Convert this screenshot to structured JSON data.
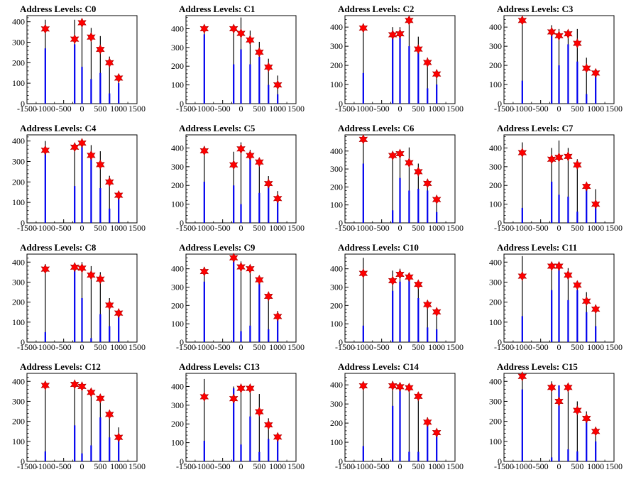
{
  "chart_data": [
    {
      "type": "bar",
      "title": "Address Levels: C0",
      "xlim": [
        -1500,
        1500
      ],
      "ylim": [
        0,
        430
      ],
      "yticks": [
        0,
        100,
        200,
        300,
        400
      ],
      "xticks": [
        -1500,
        -1000,
        -500,
        0,
        500,
        1000,
        1500
      ],
      "levels": [
        {
          "x": -1000,
          "black": 410,
          "blue": 270,
          "star": 365
        },
        {
          "x": -200,
          "black": 410,
          "blue": 290,
          "star": 315
        },
        {
          "x": 0,
          "black": 400,
          "blue": 180,
          "star": 395
        },
        {
          "x": 250,
          "black": 370,
          "blue": 120,
          "star": 325
        },
        {
          "x": 500,
          "black": 330,
          "blue": 150,
          "star": 265
        },
        {
          "x": 750,
          "black": 230,
          "blue": 50,
          "star": 200
        },
        {
          "x": 1000,
          "black": 140,
          "blue": 100,
          "star": 125
        }
      ]
    },
    {
      "type": "bar",
      "title": "Address Levels: C1",
      "xlim": [
        -1500,
        1500
      ],
      "ylim": [
        0,
        470
      ],
      "yticks": [
        0,
        100,
        200,
        300,
        400
      ],
      "xticks": [
        -1500,
        -1000,
        -500,
        0,
        500,
        1000,
        1500
      ],
      "levels": [
        {
          "x": -1000,
          "black": 420,
          "blue": 370,
          "star": 400
        },
        {
          "x": -200,
          "black": 420,
          "blue": 210,
          "star": 400
        },
        {
          "x": 0,
          "black": 460,
          "blue": 290,
          "star": 375
        },
        {
          "x": 250,
          "black": 390,
          "blue": 210,
          "star": 340
        },
        {
          "x": 500,
          "black": 330,
          "blue": 250,
          "star": 275
        },
        {
          "x": 750,
          "black": 240,
          "blue": 100,
          "star": 195
        },
        {
          "x": 1000,
          "black": 150,
          "blue": 50,
          "star": 100
        }
      ]
    },
    {
      "type": "bar",
      "title": "Address Levels: C2",
      "xlim": [
        -1500,
        1500
      ],
      "ylim": [
        0,
        460
      ],
      "yticks": [
        0,
        100,
        200,
        300,
        400
      ],
      "xticks": [
        -1500,
        -1000,
        -500,
        0,
        500,
        1000,
        1500
      ],
      "levels": [
        {
          "x": -1000,
          "black": 410,
          "blue": 160,
          "star": 395
        },
        {
          "x": -200,
          "black": 400,
          "blue": 380,
          "star": 360
        },
        {
          "x": 0,
          "black": 400,
          "blue": 370,
          "star": 365
        },
        {
          "x": 250,
          "black": 450,
          "blue": 300,
          "star": 435
        },
        {
          "x": 500,
          "black": 350,
          "blue": 290,
          "star": 285
        },
        {
          "x": 750,
          "black": 240,
          "blue": 80,
          "star": 215
        },
        {
          "x": 1000,
          "black": 170,
          "blue": 100,
          "star": 155
        }
      ]
    },
    {
      "type": "bar",
      "title": "Address Levels: C3",
      "xlim": [
        -1500,
        1500
      ],
      "ylim": [
        0,
        460
      ],
      "yticks": [
        0,
        100,
        200,
        300,
        400
      ],
      "xticks": [
        -1500,
        -1000,
        -500,
        0,
        500,
        1000,
        1500
      ],
      "levels": [
        {
          "x": -1000,
          "black": 440,
          "blue": 120,
          "star": 435
        },
        {
          "x": -200,
          "black": 410,
          "blue": 370,
          "star": 375
        },
        {
          "x": 0,
          "black": 390,
          "blue": 200,
          "star": 355
        },
        {
          "x": 250,
          "black": 380,
          "blue": 310,
          "star": 365
        },
        {
          "x": 500,
          "black": 390,
          "blue": 220,
          "star": 315
        },
        {
          "x": 750,
          "black": 240,
          "blue": 50,
          "star": 185
        },
        {
          "x": 1000,
          "black": 170,
          "blue": 150,
          "star": 160
        }
      ]
    },
    {
      "type": "bar",
      "title": "Address Levels: C4",
      "xlim": [
        -1500,
        1500
      ],
      "ylim": [
        0,
        430
      ],
      "yticks": [
        0,
        100,
        200,
        300,
        400
      ],
      "xticks": [
        -1500,
        -1000,
        -500,
        0,
        500,
        1000,
        1500
      ],
      "levels": [
        {
          "x": -1000,
          "black": 400,
          "blue": 360,
          "star": 355
        },
        {
          "x": -200,
          "black": 380,
          "blue": 180,
          "star": 370
        },
        {
          "x": 0,
          "black": 400,
          "blue": 380,
          "star": 390
        },
        {
          "x": 250,
          "black": 380,
          "blue": 320,
          "star": 330
        },
        {
          "x": 500,
          "black": 350,
          "blue": 170,
          "star": 285
        },
        {
          "x": 750,
          "black": 230,
          "blue": 70,
          "star": 200
        },
        {
          "x": 1000,
          "black": 150,
          "blue": 140,
          "star": 135
        }
      ]
    },
    {
      "type": "bar",
      "title": "Address Levels: C5",
      "xlim": [
        -1500,
        1500
      ],
      "ylim": [
        0,
        470
      ],
      "yticks": [
        0,
        100,
        200,
        300,
        400
      ],
      "xticks": [
        -1500,
        -1000,
        -500,
        0,
        500,
        1000,
        1500
      ],
      "levels": [
        {
          "x": -1000,
          "black": 410,
          "blue": 220,
          "star": 385
        },
        {
          "x": -200,
          "black": 380,
          "blue": 200,
          "star": 310
        },
        {
          "x": 0,
          "black": 430,
          "blue": 100,
          "star": 395
        },
        {
          "x": 250,
          "black": 390,
          "blue": 350,
          "star": 360
        },
        {
          "x": 500,
          "black": 340,
          "blue": 160,
          "star": 325
        },
        {
          "x": 750,
          "black": 250,
          "blue": 220,
          "star": 210
        },
        {
          "x": 1000,
          "black": 170,
          "blue": 140,
          "star": 130
        }
      ]
    },
    {
      "type": "bar",
      "title": "Address Levels: C6",
      "xlim": [
        -1500,
        1500
      ],
      "ylim": [
        0,
        490
      ],
      "yticks": [
        0,
        100,
        200,
        300,
        400
      ],
      "xticks": [
        -1500,
        -1000,
        -500,
        0,
        500,
        1000,
        1500
      ],
      "levels": [
        {
          "x": -1000,
          "black": 470,
          "blue": 330,
          "star": 465
        },
        {
          "x": -200,
          "black": 390,
          "blue": 70,
          "star": 375
        },
        {
          "x": 0,
          "black": 400,
          "blue": 250,
          "star": 385
        },
        {
          "x": 250,
          "black": 420,
          "blue": 180,
          "star": 335
        },
        {
          "x": 500,
          "black": 330,
          "blue": 190,
          "star": 285
        },
        {
          "x": 750,
          "black": 240,
          "blue": 180,
          "star": 220
        },
        {
          "x": 1000,
          "black": 140,
          "blue": 60,
          "star": 130
        }
      ]
    },
    {
      "type": "bar",
      "title": "Address Levels: C7",
      "xlim": [
        -1500,
        1500
      ],
      "ylim": [
        0,
        470
      ],
      "yticks": [
        0,
        100,
        200,
        300,
        400
      ],
      "xticks": [
        -1500,
        -1000,
        -500,
        0,
        500,
        1000,
        1500
      ],
      "levels": [
        {
          "x": -1000,
          "black": 430,
          "blue": 80,
          "star": 375
        },
        {
          "x": -200,
          "black": 400,
          "blue": 220,
          "star": 340
        },
        {
          "x": 0,
          "black": 440,
          "blue": 150,
          "star": 350
        },
        {
          "x": 250,
          "black": 400,
          "blue": 140,
          "star": 355
        },
        {
          "x": 500,
          "black": 340,
          "blue": 60,
          "star": 310
        },
        {
          "x": 750,
          "black": 210,
          "blue": 180,
          "star": 195
        },
        {
          "x": 1000,
          "black": 180,
          "blue": 110,
          "star": 100
        }
      ]
    },
    {
      "type": "bar",
      "title": "Address Levels: C8",
      "xlim": [
        -1500,
        1500
      ],
      "ylim": [
        0,
        440
      ],
      "yticks": [
        0,
        100,
        200,
        300,
        400
      ],
      "xticks": [
        -1500,
        -1000,
        -500,
        0,
        500,
        1000,
        1500
      ],
      "levels": [
        {
          "x": -1000,
          "black": 390,
          "blue": 50,
          "star": 365
        },
        {
          "x": -200,
          "black": 380,
          "blue": 380,
          "star": 375
        },
        {
          "x": 0,
          "black": 400,
          "blue": 220,
          "star": 370
        },
        {
          "x": 250,
          "black": 380,
          "blue": 20,
          "star": 335
        },
        {
          "x": 500,
          "black": 350,
          "blue": 140,
          "star": 315
        },
        {
          "x": 750,
          "black": 220,
          "blue": 80,
          "star": 185
        },
        {
          "x": 1000,
          "black": 160,
          "blue": 140,
          "star": 145
        }
      ]
    },
    {
      "type": "bar",
      "title": "Address Levels: C9",
      "xlim": [
        -1500,
        1500
      ],
      "ylim": [
        0,
        480
      ],
      "yticks": [
        0,
        100,
        200,
        300,
        400
      ],
      "xticks": [
        -1500,
        -1000,
        -500,
        0,
        500,
        1000,
        1500
      ],
      "levels": [
        {
          "x": -1000,
          "black": 410,
          "blue": 330,
          "star": 385
        },
        {
          "x": -200,
          "black": 450,
          "blue": 460,
          "star": 460
        },
        {
          "x": 0,
          "black": 440,
          "blue": 60,
          "star": 410
        },
        {
          "x": 250,
          "black": 420,
          "blue": 90,
          "star": 400
        },
        {
          "x": 500,
          "black": 350,
          "blue": 320,
          "star": 340
        },
        {
          "x": 750,
          "black": 260,
          "blue": 70,
          "star": 250
        },
        {
          "x": 1000,
          "black": 170,
          "blue": 120,
          "star": 140
        }
      ]
    },
    {
      "type": "bar",
      "title": "Address Levels: C10",
      "xlim": [
        -1500,
        1500
      ],
      "ylim": [
        0,
        480
      ],
      "yticks": [
        0,
        100,
        200,
        300,
        400
      ],
      "xticks": [
        -1500,
        -1000,
        -500,
        0,
        500,
        1000,
        1500
      ],
      "levels": [
        {
          "x": -1000,
          "black": 460,
          "blue": 90,
          "star": 375
        },
        {
          "x": -200,
          "black": 390,
          "blue": 280,
          "star": 335
        },
        {
          "x": 0,
          "black": 400,
          "blue": 330,
          "star": 370
        },
        {
          "x": 250,
          "black": 370,
          "blue": 340,
          "star": 355
        },
        {
          "x": 500,
          "black": 330,
          "blue": 240,
          "star": 315
        },
        {
          "x": 750,
          "black": 220,
          "blue": 80,
          "star": 205
        },
        {
          "x": 1000,
          "black": 180,
          "blue": 70,
          "star": 165
        }
      ]
    },
    {
      "type": "bar",
      "title": "Address Levels: C11",
      "xlim": [
        -1500,
        1500
      ],
      "ylim": [
        0,
        440
      ],
      "yticks": [
        0,
        100,
        200,
        300,
        400
      ],
      "xticks": [
        -1500,
        -1000,
        -500,
        0,
        500,
        1000,
        1500
      ],
      "levels": [
        {
          "x": -1000,
          "black": 430,
          "blue": 130,
          "star": 330
        },
        {
          "x": -200,
          "black": 380,
          "blue": 260,
          "star": 380
        },
        {
          "x": 0,
          "black": 400,
          "blue": 370,
          "star": 380
        },
        {
          "x": 250,
          "black": 370,
          "blue": 210,
          "star": 335
        },
        {
          "x": 500,
          "black": 300,
          "blue": 260,
          "star": 285
        },
        {
          "x": 750,
          "black": 250,
          "blue": 150,
          "star": 205
        },
        {
          "x": 1000,
          "black": 160,
          "blue": 80,
          "star": 165
        }
      ]
    },
    {
      "type": "bar",
      "title": "Address Levels: C12",
      "xlim": [
        -1500,
        1500
      ],
      "ylim": [
        0,
        440
      ],
      "yticks": [
        0,
        100,
        200,
        300,
        400
      ],
      "xticks": [
        -1500,
        -1000,
        -500,
        0,
        500,
        1000,
        1500
      ],
      "levels": [
        {
          "x": -1000,
          "black": 390,
          "blue": 50,
          "star": 380
        },
        {
          "x": -200,
          "black": 390,
          "blue": 180,
          "star": 385
        },
        {
          "x": 0,
          "black": 380,
          "blue": 40,
          "star": 375
        },
        {
          "x": 250,
          "black": 360,
          "blue": 80,
          "star": 345
        },
        {
          "x": 500,
          "black": 330,
          "blue": 220,
          "star": 315
        },
        {
          "x": 750,
          "black": 250,
          "blue": 120,
          "star": 235
        },
        {
          "x": 1000,
          "black": 170,
          "blue": 110,
          "star": 120
        }
      ]
    },
    {
      "type": "bar",
      "title": "Address Levels: C13",
      "xlim": [
        -1500,
        1500
      ],
      "ylim": [
        0,
        470
      ],
      "yticks": [
        0,
        100,
        200,
        300,
        400
      ],
      "xticks": [
        -1500,
        -1000,
        -500,
        0,
        500,
        1000,
        1500
      ],
      "levels": [
        {
          "x": -1000,
          "black": 440,
          "blue": 110,
          "star": 345
        },
        {
          "x": -200,
          "black": 400,
          "blue": 390,
          "star": 335
        },
        {
          "x": 0,
          "black": 400,
          "blue": 90,
          "star": 390
        },
        {
          "x": 250,
          "black": 390,
          "blue": 240,
          "star": 390
        },
        {
          "x": 500,
          "black": 360,
          "blue": 50,
          "star": 265
        },
        {
          "x": 750,
          "black": 230,
          "blue": 120,
          "star": 195
        },
        {
          "x": 1000,
          "black": 150,
          "blue": 130,
          "star": 130
        }
      ]
    },
    {
      "type": "bar",
      "title": "Address Levels: C14",
      "xlim": [
        -1500,
        1500
      ],
      "ylim": [
        0,
        460
      ],
      "yticks": [
        0,
        100,
        200,
        300,
        400
      ],
      "xticks": [
        -1500,
        -1000,
        -500,
        0,
        500,
        1000,
        1500
      ],
      "levels": [
        {
          "x": -1000,
          "black": 410,
          "blue": 80,
          "star": 395
        },
        {
          "x": -200,
          "black": 420,
          "blue": 290,
          "star": 395
        },
        {
          "x": 0,
          "black": 400,
          "blue": 380,
          "star": 390
        },
        {
          "x": 250,
          "black": 390,
          "blue": 50,
          "star": 385
        },
        {
          "x": 500,
          "black": 350,
          "blue": 50,
          "star": 340
        },
        {
          "x": 750,
          "black": 230,
          "blue": 200,
          "star": 205
        },
        {
          "x": 1000,
          "black": 170,
          "blue": 140,
          "star": 150
        }
      ]
    },
    {
      "type": "bar",
      "title": "Address Levels: C15",
      "xlim": [
        -1500,
        1500
      ],
      "ylim": [
        0,
        440
      ],
      "yticks": [
        0,
        100,
        200,
        300,
        400
      ],
      "xticks": [
        -1500,
        -1000,
        -500,
        0,
        500,
        1000,
        1500
      ],
      "levels": [
        {
          "x": -1000,
          "black": 430,
          "blue": 360,
          "star": 425
        },
        {
          "x": -200,
          "black": 400,
          "blue": 20,
          "star": 370
        },
        {
          "x": 0,
          "black": 380,
          "blue": 380,
          "star": 300
        },
        {
          "x": 250,
          "black": 380,
          "blue": 60,
          "star": 370
        },
        {
          "x": 500,
          "black": 300,
          "blue": 50,
          "star": 255
        },
        {
          "x": 750,
          "black": 250,
          "blue": 200,
          "star": 215
        },
        {
          "x": 1000,
          "black": 160,
          "blue": 100,
          "star": 150
        }
      ]
    }
  ],
  "colors": {
    "black_bar": "#000000",
    "blue_bar": "#0000ee",
    "star_fill": "#ff0000",
    "star_stroke": "#aa0000"
  }
}
